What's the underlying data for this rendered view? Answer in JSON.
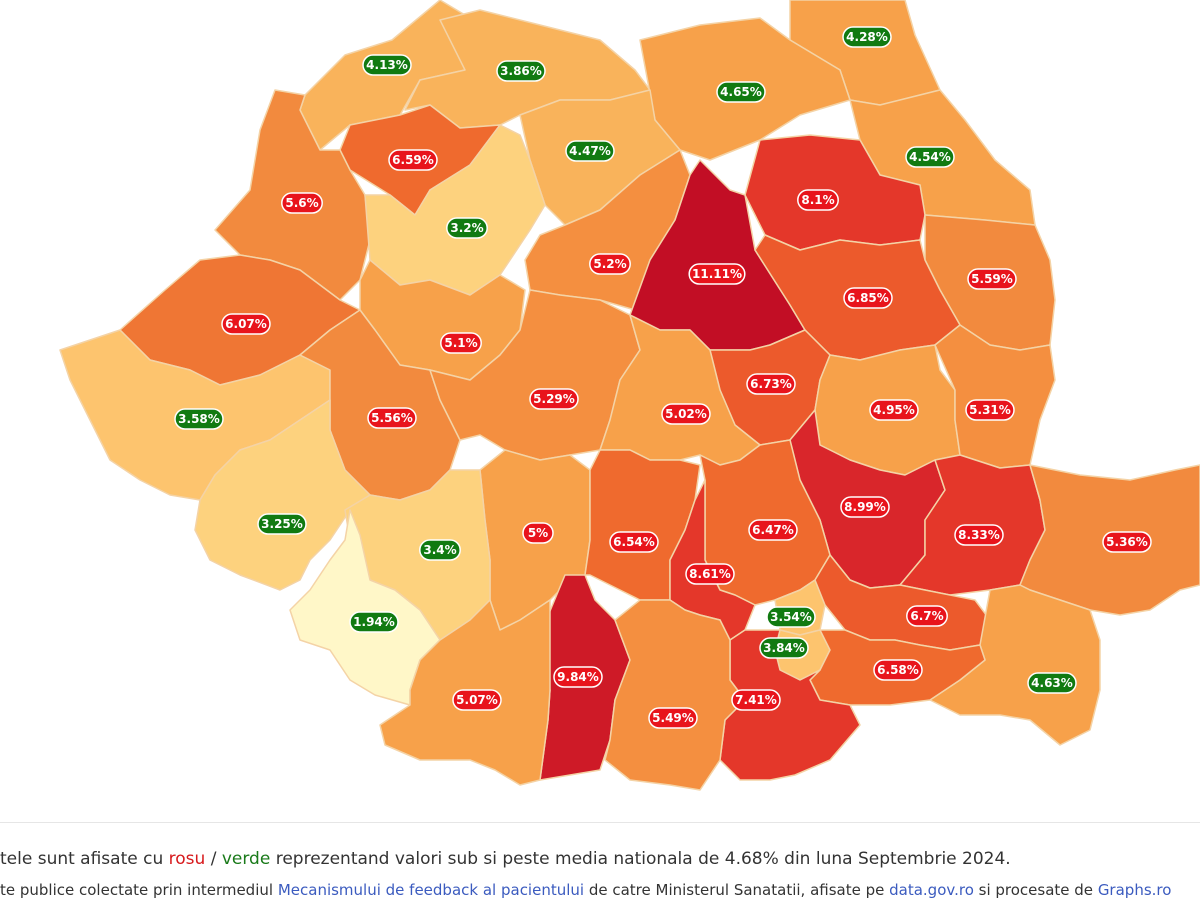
{
  "map": {
    "counties": [
      {
        "value": "4.13%",
        "status": "green",
        "fill": "#f9b35b"
      },
      {
        "value": "3.86%",
        "status": "green",
        "fill": "#f9b35b"
      },
      {
        "value": "4.28%",
        "status": "green",
        "fill": "#f7a14a"
      },
      {
        "value": "4.65%",
        "status": "green",
        "fill": "#f7a14a"
      },
      {
        "value": "6.59%",
        "status": "red",
        "fill": "#ef6a2e"
      },
      {
        "value": "4.47%",
        "status": "green",
        "fill": "#f9b35b"
      },
      {
        "value": "4.54%",
        "status": "green",
        "fill": "#f7a14a"
      },
      {
        "value": "5.6%",
        "status": "red",
        "fill": "#f28a3e"
      },
      {
        "value": "8.1%",
        "status": "red",
        "fill": "#e4372a"
      },
      {
        "value": "3.2%",
        "status": "green",
        "fill": "#fdd27e"
      },
      {
        "value": "5.2%",
        "status": "red",
        "fill": "#f48f40"
      },
      {
        "value": "11.11%",
        "status": "red",
        "fill": "#c20e25"
      },
      {
        "value": "5.59%",
        "status": "red",
        "fill": "#f28a3e"
      },
      {
        "value": "6.85%",
        "status": "red",
        "fill": "#ec5a2c"
      },
      {
        "value": "6.07%",
        "status": "red",
        "fill": "#ef7634"
      },
      {
        "value": "5.1%",
        "status": "red",
        "fill": "#f7a14a"
      },
      {
        "value": "6.73%",
        "status": "red",
        "fill": "#ec5a2c"
      },
      {
        "value": "3.58%",
        "status": "green",
        "fill": "#fdc46e"
      },
      {
        "value": "5.56%",
        "status": "red",
        "fill": "#f28a3e"
      },
      {
        "value": "5.29%",
        "status": "red",
        "fill": "#f48f40"
      },
      {
        "value": "5.02%",
        "status": "red",
        "fill": "#f7a14a"
      },
      {
        "value": "4.95%",
        "status": "red",
        "fill": "#f7a14a"
      },
      {
        "value": "5.31%",
        "status": "red",
        "fill": "#f48f40"
      },
      {
        "value": "3.25%",
        "status": "green",
        "fill": "#fdd27e"
      },
      {
        "value": "8.99%",
        "status": "red",
        "fill": "#d9262b"
      },
      {
        "value": "8.33%",
        "status": "red",
        "fill": "#e4372a"
      },
      {
        "value": "5%",
        "status": "red",
        "fill": "#f7a14a"
      },
      {
        "value": "6.54%",
        "status": "red",
        "fill": "#ef6a2e"
      },
      {
        "value": "6.47%",
        "status": "red",
        "fill": "#ef6a2e"
      },
      {
        "value": "3.4%",
        "status": "green",
        "fill": "#fdd27e"
      },
      {
        "value": "5.36%",
        "status": "red",
        "fill": "#f28a3e"
      },
      {
        "value": "8.61%",
        "status": "red",
        "fill": "#e4372a"
      },
      {
        "value": "1.94%",
        "status": "green",
        "fill": "#fff7c8"
      },
      {
        "value": "3.54%",
        "status": "green",
        "fill": "#fdc46e"
      },
      {
        "value": "6.7%",
        "status": "red",
        "fill": "#ec5a2c"
      },
      {
        "value": "3.84%",
        "status": "green",
        "fill": "#fdc46e"
      },
      {
        "value": "4.63%",
        "status": "green",
        "fill": "#f7a14a"
      },
      {
        "value": "6.58%",
        "status": "red",
        "fill": "#ef6a2e"
      },
      {
        "value": "9.84%",
        "status": "red",
        "fill": "#ce1a27"
      },
      {
        "value": "5.07%",
        "status": "red",
        "fill": "#f7a14a"
      },
      {
        "value": "7.41%",
        "status": "red",
        "fill": "#e4372a"
      },
      {
        "value": "5.49%",
        "status": "red",
        "fill": "#f48f40"
      }
    ],
    "badge_colors": {
      "red": "#e8141c",
      "green": "#117a11"
    }
  },
  "footer": {
    "line1": {
      "prefix": "tele sunt afisate cu ",
      "red_word": "rosu",
      "separator": " / ",
      "green_word": "verde",
      "suffix": " reprezentand valori sub si peste media nationala de 4.68% din luna Septembrie 2024."
    },
    "line2": {
      "prefix": "te publice colectate prin intermediul ",
      "link1": "Mecanismului de feedback al pacientului",
      "middle1": " de catre Ministerul Sanatatii, afisate pe ",
      "link2": "data.gov.ro",
      "middle2": " si procesate de ",
      "link3": "Graphs.ro"
    }
  }
}
